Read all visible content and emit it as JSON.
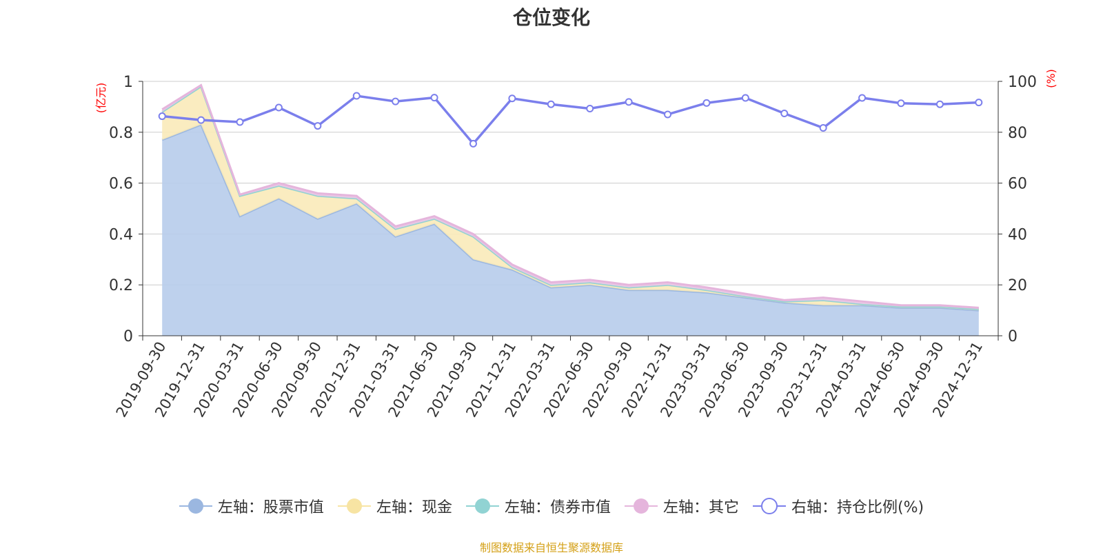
{
  "chart_data": {
    "type": "area",
    "title": "仓位变化",
    "left_axis_unit": "(亿元)",
    "right_axis_unit": "(%)",
    "categories": [
      "2019-09-30",
      "2019-12-31",
      "2020-03-31",
      "2020-06-30",
      "2020-09-30",
      "2020-12-31",
      "2021-03-31",
      "2021-06-30",
      "2021-09-30",
      "2021-12-31",
      "2022-03-31",
      "2022-06-30",
      "2022-09-30",
      "2022-12-31",
      "2023-03-31",
      "2023-06-30",
      "2023-09-30",
      "2023-12-31",
      "2024-03-31",
      "2024-06-30",
      "2024-09-30",
      "2024-12-31"
    ],
    "y_left_ticks": [
      "0",
      "0.2",
      "0.4",
      "0.6",
      "0.8",
      "1"
    ],
    "y_right_ticks": [
      "0",
      "20",
      "40",
      "60",
      "80",
      "100"
    ],
    "ylim_left": [
      0,
      1
    ],
    "ylim_right": [
      0,
      100
    ],
    "stacked": true,
    "grid": true,
    "legend_position": "bottom",
    "series": [
      {
        "name": "左轴：股票市值",
        "axis": "left",
        "color": "#9bb7e0",
        "fill": "#b7cceb",
        "values": [
          0.77,
          0.83,
          0.47,
          0.54,
          0.46,
          0.52,
          0.39,
          0.44,
          0.3,
          0.26,
          0.19,
          0.2,
          0.18,
          0.18,
          0.17,
          0.15,
          0.13,
          0.12,
          0.12,
          0.11,
          0.11,
          0.1
        ]
      },
      {
        "name": "左轴：现金",
        "axis": "left",
        "color": "#f7e4a3",
        "fill": "#f9eab9",
        "values": [
          0.11,
          0.15,
          0.08,
          0.05,
          0.09,
          0.02,
          0.03,
          0.02,
          0.09,
          0.01,
          0.01,
          0.01,
          0.01,
          0.02,
          0.01,
          0.005,
          0.005,
          0.02,
          0.005,
          0.005,
          0.005,
          0.005
        ]
      },
      {
        "name": "左轴：债券市值",
        "axis": "left",
        "color": "#91d3d3",
        "fill": "#91d3d3",
        "values": [
          0,
          0,
          0,
          0,
          0,
          0,
          0,
          0,
          0,
          0,
          0,
          0,
          0,
          0,
          0,
          0,
          0,
          0,
          0,
          0,
          0,
          0
        ]
      },
      {
        "name": "左轴：其它",
        "axis": "left",
        "color": "#e5b5dc",
        "fill": "#ecc6e5",
        "values": [
          0.01,
          0.005,
          0.005,
          0.01,
          0.01,
          0.01,
          0.01,
          0.01,
          0.01,
          0.01,
          0.01,
          0.01,
          0.01,
          0.01,
          0.01,
          0.01,
          0.005,
          0.01,
          0.01,
          0.005,
          0.005,
          0.005
        ]
      },
      {
        "name": "右轴：持仓比例(%)",
        "axis": "right",
        "color": "#7b7fec",
        "values": [
          86.3,
          84.8,
          84.0,
          89.7,
          82.5,
          94.3,
          92.1,
          93.6,
          75.5,
          93.3,
          91.0,
          89.3,
          91.9,
          87.0,
          91.5,
          93.5,
          87.4,
          81.7,
          93.5,
          91.4,
          91.0,
          91.7
        ]
      }
    ],
    "source_note": "制图数据来自恒生聚源数据库"
  }
}
